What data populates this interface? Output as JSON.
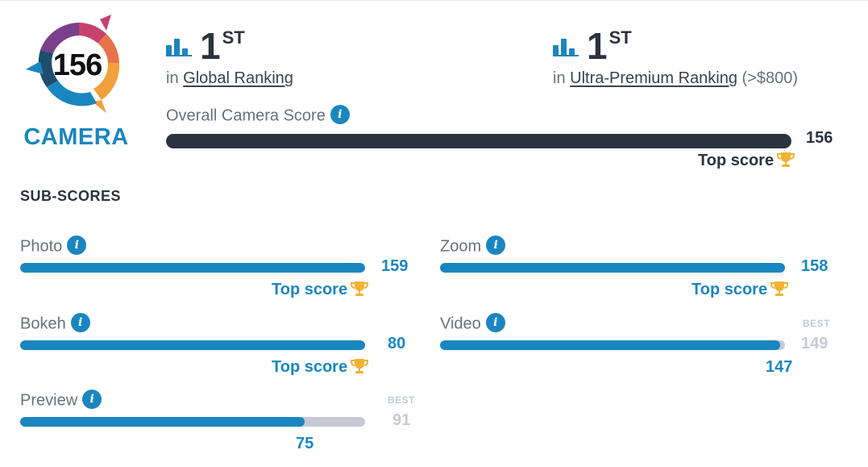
{
  "badge": {
    "score": "156",
    "label": "CAMERA",
    "colors": {
      "purple": "#7b3f8c",
      "pink": "#c8416d",
      "orange": "#e8734a",
      "yellow": "#f2a03a",
      "blue": "#1a86bf",
      "navy": "#1e4d6e"
    }
  },
  "rankings": {
    "global": {
      "position": "1",
      "suffix": "ST",
      "prefix": "in",
      "name": "Global Ranking",
      "note": ""
    },
    "ultra": {
      "position": "1",
      "suffix": "ST",
      "prefix": "in",
      "name": "Ultra-Premium Ranking",
      "note": "(>$800)"
    }
  },
  "overall": {
    "label": "Overall Camera Score",
    "value": "156",
    "fraction": 1.0,
    "top_label": "Top score"
  },
  "sub_title": "SUB-SCORES",
  "sub_scores": {
    "photo": {
      "label": "Photo",
      "value": "159",
      "fraction": 1.0,
      "top_label": "Top score"
    },
    "zoom": {
      "label": "Zoom",
      "value": "158",
      "fraction": 1.0,
      "top_label": "Top score"
    },
    "bokeh": {
      "label": "Bokeh",
      "value": "80",
      "fraction": 1.0,
      "top_label": "Top score"
    },
    "video": {
      "label": "Video",
      "best_label": "BEST",
      "best_value": "149",
      "value": "147",
      "fraction": 0.986
    },
    "preview": {
      "label": "Preview",
      "best_label": "BEST",
      "best_value": "91",
      "value": "75",
      "fraction": 0.824
    }
  },
  "icons": {
    "ranking": "bar-chart-icon",
    "info": "info-icon",
    "trophy": "trophy-icon"
  },
  "colors": {
    "accent": "#1a86bf",
    "dark": "#2b3340",
    "track": "#c5cad6",
    "muted": "#6b707a",
    "trophy": "#f2b233"
  }
}
